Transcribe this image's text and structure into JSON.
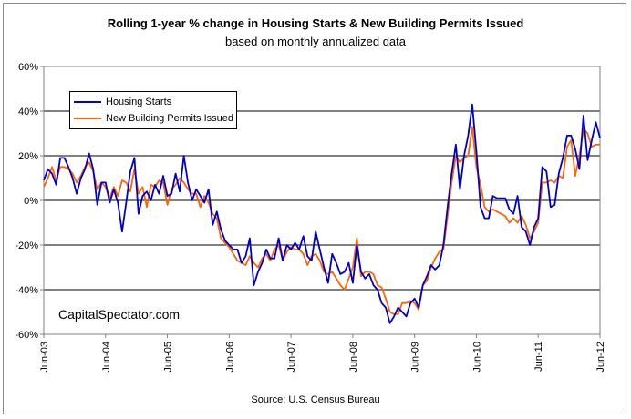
{
  "chart_data": {
    "type": "line",
    "title": "Rolling 1-year %  change in Housing Starts & New Building Permits Issued",
    "subtitle": "based on monthly annualized data",
    "source": "Source: U.S. Census Bureau",
    "watermark": "CapitalSpectator.com",
    "ylim": [
      -60,
      60
    ],
    "y_ticks": [
      -60,
      -40,
      -20,
      0,
      20,
      40,
      60
    ],
    "y_tick_labels": [
      "-60%",
      "-40%",
      "-20%",
      "0%",
      "20%",
      "40%",
      "60%"
    ],
    "x_range": [
      "2003-06",
      "2012-06"
    ],
    "x_tick_labels": [
      "Jun-03",
      "Jun-04",
      "Jun-05",
      "Jun-06",
      "Jun-07",
      "Jun-08",
      "Jun-09",
      "Jun-10",
      "Jun-11",
      "Jun-12"
    ],
    "grid": "horizontal",
    "legend_position": "top-left",
    "series": [
      {
        "name": "Housing Starts",
        "color": "#0000cc",
        "values": [
          9,
          14,
          12,
          7,
          19,
          19,
          15,
          10,
          3,
          10,
          14,
          21,
          14,
          -2,
          8,
          8,
          -1,
          5,
          -1,
          -14,
          -1,
          13,
          19,
          -6,
          2,
          4,
          0,
          7,
          3,
          11,
          2,
          3,
          12,
          4,
          20,
          8,
          0,
          5,
          2,
          -1,
          5,
          -11,
          -5,
          -13,
          -18,
          -20,
          -22,
          -22,
          -28,
          -25,
          -17,
          -38,
          -32,
          -28,
          -22,
          -26,
          -26,
          -17,
          -27,
          -20,
          -22,
          -19,
          -22,
          -16,
          -25,
          -27,
          -14,
          -22,
          -30,
          -37,
          -24,
          -28,
          -33,
          -32,
          -28,
          -37,
          -20,
          -32,
          -35,
          -33,
          -38,
          -40,
          -46,
          -48,
          -55,
          -52,
          -48,
          -50,
          -52,
          -46,
          -44,
          -48,
          -38,
          -34,
          -29,
          -31,
          -29,
          -20,
          -3,
          12,
          25,
          5,
          20,
          29,
          43,
          22,
          -3,
          -8,
          -8,
          2,
          1,
          1,
          1,
          -4,
          -6,
          2,
          -12,
          -14,
          -20,
          -12,
          -8,
          15,
          13,
          -3,
          -2,
          12,
          19,
          29,
          29,
          23,
          14,
          38,
          18,
          27,
          35,
          28
        ]
      },
      {
        "name": "New Building Permits Issued",
        "color": "#ff6600",
        "values": [
          6,
          10,
          15,
          9,
          15,
          15,
          14,
          12,
          8,
          11,
          15,
          17,
          13,
          5,
          8,
          6,
          1,
          6,
          2,
          9,
          8,
          4,
          14,
          3,
          6,
          -3,
          7,
          6,
          9,
          8,
          -2,
          5,
          7,
          10,
          8,
          5,
          3,
          3,
          -3,
          2,
          -1,
          -6,
          -8,
          -17,
          -19,
          -21,
          -24,
          -27,
          -28,
          -29,
          -25,
          -28,
          -30,
          -26,
          -24,
          -27,
          -22,
          -20,
          -27,
          -23,
          -21,
          -22,
          -22,
          -24,
          -29,
          -25,
          -24,
          -27,
          -32,
          -33,
          -32,
          -35,
          -38,
          -40,
          -35,
          -30,
          -17,
          -34,
          -32,
          -32,
          -33,
          -38,
          -39,
          -44,
          -50,
          -51,
          -51,
          -46,
          -46,
          -45,
          -46,
          -49,
          -38,
          -36,
          -30,
          -26,
          -23,
          -22,
          -7,
          8,
          20,
          17,
          19,
          20,
          33,
          15,
          7,
          -3,
          -5,
          -4,
          -5,
          -6,
          -7,
          -10,
          -8,
          -10,
          -7,
          -11,
          -17,
          -14,
          -10,
          8,
          8,
          9,
          8,
          11,
          10,
          24,
          27,
          11,
          20,
          32,
          30,
          24,
          25,
          25
        ]
      }
    ]
  }
}
